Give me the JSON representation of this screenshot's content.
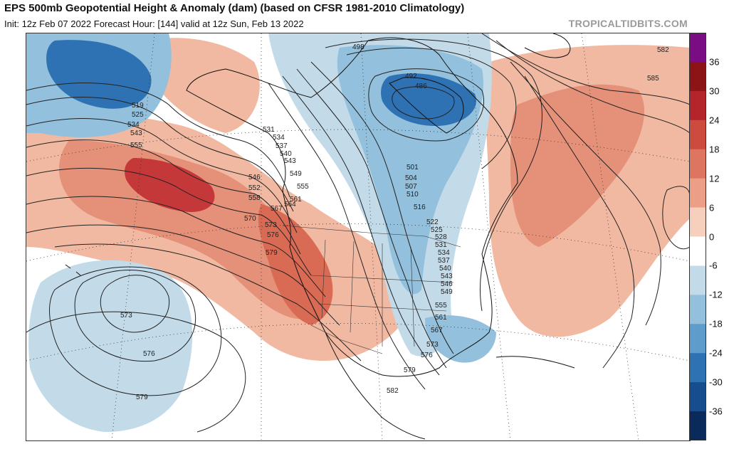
{
  "header": {
    "title": "EPS 500mb Geopotential Height & Anomaly (dam) (based on CFSR 1981-2010 Climatology)",
    "subtitle": "Init: 12z Feb 07 2022   Forecast Hour: [144]   valid at 12z Sun, Feb 13 2022",
    "site": "TROPICALTIDBITS.COM"
  },
  "colorbar": {
    "labels": [
      "36",
      "30",
      "24",
      "18",
      "12",
      "6",
      "0",
      "-6",
      "-12",
      "-18",
      "-24",
      "-30",
      "-36"
    ],
    "colors": [
      "#7a0c84",
      "#8c1416",
      "#b3242b",
      "#cd4a3f",
      "#dd7561",
      "#ec9f86",
      "#f7cfbd",
      "#ffffff",
      "#c3dbe9",
      "#93c0dc",
      "#5d9ccb",
      "#2f72b3",
      "#154d8f",
      "#0a2a5c"
    ]
  },
  "contours": {
    "gulf_of_alaska": [
      "519",
      "525",
      "534",
      "543",
      "555"
    ],
    "bc_coast": [
      "531",
      "534",
      "537",
      "540",
      "543",
      "546",
      "549",
      "552",
      "555",
      "558",
      "561",
      "564",
      "567",
      "570",
      "573",
      "576",
      "579"
    ],
    "hudson_low": [
      "492",
      "486",
      "498"
    ],
    "eastern_trough": [
      "501",
      "504",
      "507",
      "510",
      "516",
      "522",
      "525",
      "528",
      "531",
      "534",
      "537",
      "540",
      "543",
      "546",
      "549",
      "555",
      "561",
      "567",
      "573",
      "576",
      "579",
      "582"
    ],
    "atlantic_ridge": [
      "582",
      "585"
    ],
    "pacific_low": [
      "573",
      "576",
      "579"
    ]
  }
}
